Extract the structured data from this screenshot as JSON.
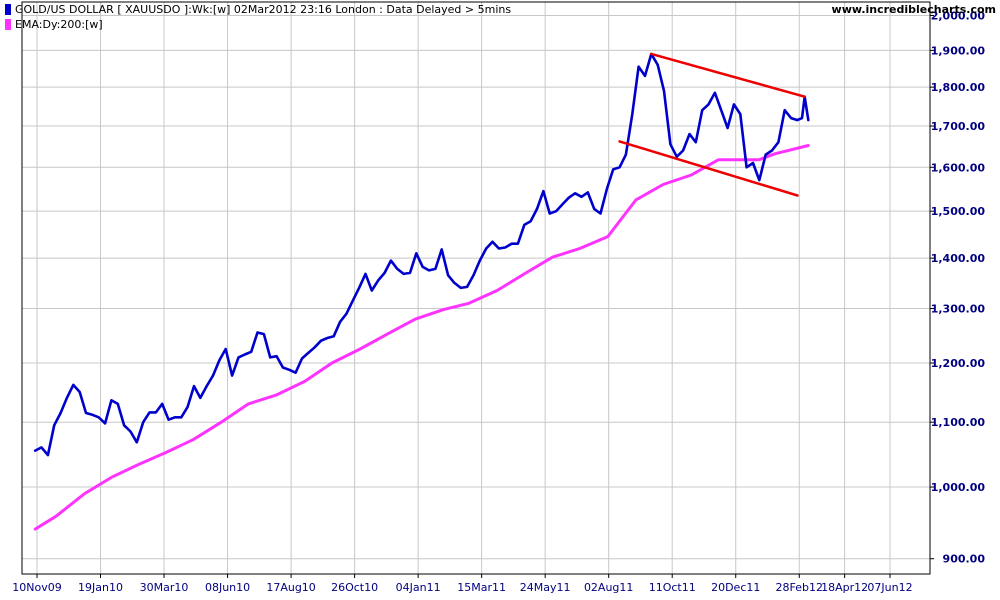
{
  "site_name": "www.incrediblecharts.com",
  "chart_data": {
    "type": "line",
    "title": "GOLD/US DOLLAR [ XAUUSDO ]:Wk:[w]  02Mar2012 23:16 London : Data Delayed > 5mins",
    "y_scale": "log",
    "ylim": [
      880,
      2040
    ],
    "y_ticks": [
      {
        "value": 900,
        "label": "900.00"
      },
      {
        "value": 1000,
        "label": "1,000.00"
      },
      {
        "value": 1100,
        "label": "1,100.00"
      },
      {
        "value": 1200,
        "label": "1,200.00"
      },
      {
        "value": 1300,
        "label": "1,300.00"
      },
      {
        "value": 1400,
        "label": "1,400.00"
      },
      {
        "value": 1500,
        "label": "1,500.00"
      },
      {
        "value": 1600,
        "label": "1,600.00"
      },
      {
        "value": 1700,
        "label": "1,700.00"
      },
      {
        "value": 1800,
        "label": "1,800.00"
      },
      {
        "value": 1900,
        "label": "1,900.00"
      },
      {
        "value": 2000,
        "label": "2,000.00"
      }
    ],
    "x_ticks": [
      {
        "date": "2009-11-10",
        "label": "10Nov09"
      },
      {
        "date": "2010-01-19",
        "label": "19Jan10"
      },
      {
        "date": "2010-03-30",
        "label": "30Mar10"
      },
      {
        "date": "2010-06-08",
        "label": "08Jun10"
      },
      {
        "date": "2010-08-17",
        "label": "17Aug10"
      },
      {
        "date": "2010-10-26",
        "label": "26Oct10"
      },
      {
        "date": "2011-01-04",
        "label": "04Jan11"
      },
      {
        "date": "2011-03-15",
        "label": "15Mar11"
      },
      {
        "date": "2011-05-24",
        "label": "24May11"
      },
      {
        "date": "2011-08-02",
        "label": "02Aug11"
      },
      {
        "date": "2011-10-11",
        "label": "11Oct11"
      },
      {
        "date": "2011-12-20",
        "label": "20Dec11"
      },
      {
        "date": "2012-02-28",
        "label": "28Feb12"
      },
      {
        "date": "2012-04-18",
        "label": "18Apr12"
      },
      {
        "date": "2012-06-07",
        "label": "07Jun12"
      }
    ],
    "grid": true,
    "legend_position": "top-left",
    "series": [
      {
        "name": "GOLD/US DOLLAR [ XAUUSDO ]:Wk:[w]  02Mar2012 23:16 London : Data Delayed > 5mins",
        "color": "#0000cc",
        "points": [
          [
            "2009-11-08",
            1055
          ],
          [
            "2009-11-15",
            1060
          ],
          [
            "2009-11-22",
            1048
          ],
          [
            "2009-11-29",
            1095
          ],
          [
            "2009-12-06",
            1115
          ],
          [
            "2009-12-13",
            1140
          ],
          [
            "2009-12-20",
            1162
          ],
          [
            "2009-12-27",
            1150
          ],
          [
            "2010-01-03",
            1115
          ],
          [
            "2010-01-10",
            1112
          ],
          [
            "2010-01-17",
            1108
          ],
          [
            "2010-01-24",
            1098
          ],
          [
            "2010-01-31",
            1136
          ],
          [
            "2010-02-07",
            1130
          ],
          [
            "2010-02-14",
            1095
          ],
          [
            "2010-02-21",
            1085
          ],
          [
            "2010-02-28",
            1068
          ],
          [
            "2010-03-07",
            1100
          ],
          [
            "2010-03-14",
            1116
          ],
          [
            "2010-03-21",
            1116
          ],
          [
            "2010-03-28",
            1130
          ],
          [
            "2010-04-04",
            1104
          ],
          [
            "2010-04-11",
            1108
          ],
          [
            "2010-04-18",
            1108
          ],
          [
            "2010-04-25",
            1125
          ],
          [
            "2010-05-02",
            1160
          ],
          [
            "2010-05-09",
            1140
          ],
          [
            "2010-05-16",
            1160
          ],
          [
            "2010-05-23",
            1178
          ],
          [
            "2010-05-30",
            1205
          ],
          [
            "2010-06-06",
            1225
          ],
          [
            "2010-06-13",
            1178
          ],
          [
            "2010-06-20",
            1210
          ],
          [
            "2010-06-27",
            1215
          ],
          [
            "2010-07-04",
            1220
          ],
          [
            "2010-07-11",
            1255
          ],
          [
            "2010-07-18",
            1252
          ],
          [
            "2010-07-25",
            1210
          ],
          [
            "2010-08-01",
            1212
          ],
          [
            "2010-08-08",
            1192
          ],
          [
            "2010-08-15",
            1188
          ],
          [
            "2010-08-22",
            1183
          ],
          [
            "2010-08-29",
            1208
          ],
          [
            "2010-09-05",
            1218
          ],
          [
            "2010-09-12",
            1228
          ],
          [
            "2010-09-19",
            1240
          ],
          [
            "2010-09-26",
            1245
          ],
          [
            "2010-10-03",
            1248
          ],
          [
            "2010-10-10",
            1275
          ],
          [
            "2010-10-17",
            1290
          ],
          [
            "2010-10-24",
            1315
          ],
          [
            "2010-10-31",
            1340
          ],
          [
            "2010-11-07",
            1368
          ],
          [
            "2010-11-14",
            1335
          ],
          [
            "2010-11-21",
            1355
          ],
          [
            "2010-11-28",
            1370
          ],
          [
            "2010-12-05",
            1395
          ],
          [
            "2010-12-12",
            1378
          ],
          [
            "2010-12-19",
            1368
          ],
          [
            "2010-12-26",
            1370
          ],
          [
            "2011-01-02",
            1410
          ],
          [
            "2011-01-09",
            1382
          ],
          [
            "2011-01-16",
            1375
          ],
          [
            "2011-01-23",
            1378
          ],
          [
            "2011-01-30",
            1418
          ],
          [
            "2011-02-06",
            1365
          ],
          [
            "2011-02-13",
            1350
          ],
          [
            "2011-02-20",
            1340
          ],
          [
            "2011-02-27",
            1342
          ],
          [
            "2011-03-06",
            1365
          ],
          [
            "2011-03-13",
            1395
          ],
          [
            "2011-03-20",
            1420
          ],
          [
            "2011-03-27",
            1434
          ],
          [
            "2011-04-03",
            1420
          ],
          [
            "2011-04-10",
            1422
          ],
          [
            "2011-04-17",
            1430
          ],
          [
            "2011-04-24",
            1430
          ],
          [
            "2011-05-01",
            1470
          ],
          [
            "2011-05-08",
            1478
          ],
          [
            "2011-05-15",
            1505
          ],
          [
            "2011-05-22",
            1545
          ],
          [
            "2011-05-29",
            1495
          ],
          [
            "2011-06-05",
            1500
          ],
          [
            "2011-06-12",
            1515
          ],
          [
            "2011-06-19",
            1530
          ],
          [
            "2011-06-26",
            1540
          ],
          [
            "2011-07-03",
            1532
          ],
          [
            "2011-07-10",
            1542
          ],
          [
            "2011-07-17",
            1505
          ],
          [
            "2011-07-24",
            1495
          ],
          [
            "2011-07-31",
            1550
          ],
          [
            "2011-08-07",
            1595
          ],
          [
            "2011-08-14",
            1600
          ],
          [
            "2011-08-21",
            1630
          ],
          [
            "2011-08-28",
            1730
          ],
          [
            "2011-09-04",
            1855
          ],
          [
            "2011-09-11",
            1830
          ],
          [
            "2011-09-18",
            1890
          ],
          [
            "2011-09-25",
            1860
          ],
          [
            "2011-10-02",
            1790
          ],
          [
            "2011-10-09",
            1655
          ],
          [
            "2011-10-16",
            1625
          ],
          [
            "2011-10-23",
            1640
          ],
          [
            "2011-10-30",
            1680
          ],
          [
            "2011-11-06",
            1660
          ],
          [
            "2011-11-13",
            1740
          ],
          [
            "2011-11-20",
            1755
          ],
          [
            "2011-11-27",
            1785
          ],
          [
            "2011-12-04",
            1740
          ],
          [
            "2011-12-11",
            1695
          ],
          [
            "2011-12-18",
            1755
          ],
          [
            "2011-12-25",
            1730
          ],
          [
            "2012-01-01",
            1600
          ],
          [
            "2012-01-08",
            1610
          ],
          [
            "2012-01-15",
            1570
          ],
          [
            "2012-01-22",
            1630
          ],
          [
            "2012-01-29",
            1640
          ],
          [
            "2012-02-05",
            1660
          ],
          [
            "2012-02-12",
            1740
          ],
          [
            "2012-02-19",
            1720
          ],
          [
            "2012-02-26",
            1715
          ],
          [
            "2012-03-02",
            1720
          ],
          [
            "2012-03-05",
            1775
          ],
          [
            "2012-03-09",
            1715
          ]
        ]
      },
      {
        "name": "EMA:Dy:200:[w]",
        "color": "#ff33ff",
        "points": [
          [
            "2009-11-08",
            940
          ],
          [
            "2009-12-01",
            958
          ],
          [
            "2010-01-01",
            990
          ],
          [
            "2010-02-01",
            1015
          ],
          [
            "2010-03-01",
            1033
          ],
          [
            "2010-04-01",
            1052
          ],
          [
            "2010-05-01",
            1072
          ],
          [
            "2010-06-01",
            1100
          ],
          [
            "2010-07-01",
            1130
          ],
          [
            "2010-08-01",
            1145
          ],
          [
            "2010-09-01",
            1168
          ],
          [
            "2010-10-01",
            1200
          ],
          [
            "2010-11-01",
            1225
          ],
          [
            "2010-12-01",
            1252
          ],
          [
            "2011-01-01",
            1280
          ],
          [
            "2011-02-01",
            1298
          ],
          [
            "2011-03-01",
            1310
          ],
          [
            "2011-04-01",
            1335
          ],
          [
            "2011-05-01",
            1368
          ],
          [
            "2011-06-01",
            1402
          ],
          [
            "2011-07-01",
            1420
          ],
          [
            "2011-08-01",
            1445
          ],
          [
            "2011-09-01",
            1525
          ],
          [
            "2011-10-01",
            1560
          ],
          [
            "2011-11-01",
            1582
          ],
          [
            "2011-12-01",
            1618
          ],
          [
            "2012-01-01",
            1618
          ],
          [
            "2012-01-15",
            1618
          ],
          [
            "2012-02-01",
            1632
          ],
          [
            "2012-03-09",
            1652
          ]
        ]
      }
    ],
    "annotations": [
      {
        "type": "trendline",
        "color": "#ee0000",
        "from": [
          "2011-09-18",
          1890
        ],
        "to": [
          "2012-03-05",
          1775
        ]
      },
      {
        "type": "trendline",
        "color": "#ee0000",
        "from": [
          "2011-08-14",
          1662
        ],
        "to": [
          "2012-02-26",
          1535
        ]
      }
    ]
  }
}
